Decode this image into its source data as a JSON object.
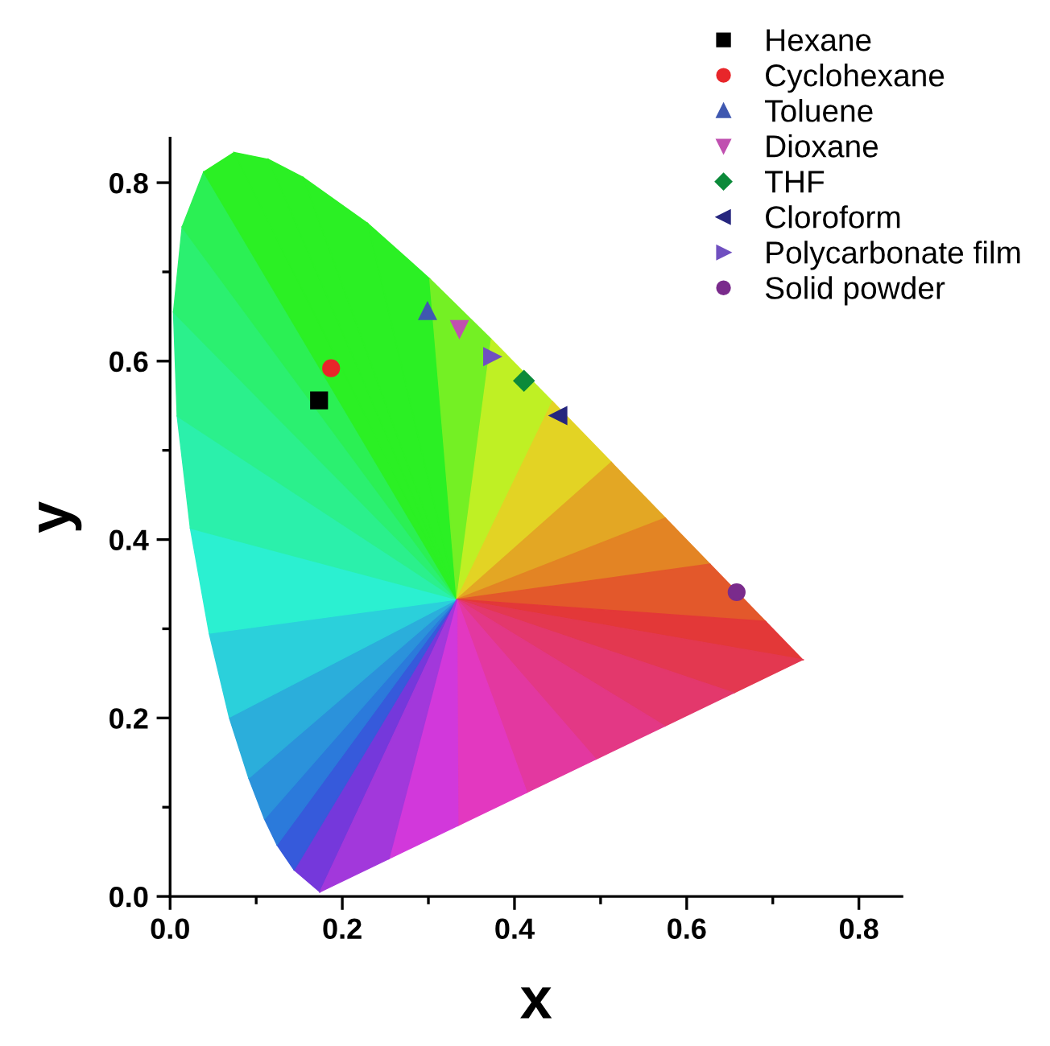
{
  "chart_data": {
    "type": "scatter",
    "xlabel": "x",
    "ylabel": "y",
    "xlim": [
      0,
      0.85
    ],
    "ylim": [
      0,
      0.85
    ],
    "xticks": [
      {
        "value": 0.0,
        "label": "0.0"
      },
      {
        "value": 0.1,
        "label": null
      },
      {
        "value": 0.2,
        "label": "0.2"
      },
      {
        "value": 0.3,
        "label": null
      },
      {
        "value": 0.4,
        "label": "0.4"
      },
      {
        "value": 0.5,
        "label": null
      },
      {
        "value": 0.6,
        "label": "0.6"
      },
      {
        "value": 0.7,
        "label": null
      },
      {
        "value": 0.8,
        "label": "0.8"
      }
    ],
    "yticks": [
      {
        "value": 0.0,
        "label": "0.0"
      },
      {
        "value": 0.1,
        "label": null
      },
      {
        "value": 0.2,
        "label": "0.2"
      },
      {
        "value": 0.3,
        "label": null
      },
      {
        "value": 0.4,
        "label": "0.4"
      },
      {
        "value": 0.5,
        "label": null
      },
      {
        "value": 0.6,
        "label": "0.6"
      },
      {
        "value": 0.7,
        "label": null
      },
      {
        "value": 0.8,
        "label": "0.8"
      }
    ],
    "grid": false,
    "legend": "top right",
    "series": [
      {
        "name": "Hexane",
        "color": "#000000",
        "marker": "square",
        "x": [
          0.173
        ],
        "values": [
          0.556
        ]
      },
      {
        "name": "Cyclohexane",
        "color": "#e8262a",
        "marker": "circle",
        "x": [
          0.187
        ],
        "values": [
          0.592
        ]
      },
      {
        "name": "Toluene",
        "color": "#3f58b0",
        "marker": "triangle",
        "x": [
          0.299
        ],
        "values": [
          0.656
        ]
      },
      {
        "name": "Dioxane",
        "color": "#c050b0",
        "marker": "triangle_down",
        "x": [
          0.336
        ],
        "values": [
          0.636
        ]
      },
      {
        "name": "THF",
        "color": "#0c8a3a",
        "marker": "diamond",
        "x": [
          0.411
        ],
        "values": [
          0.578
        ]
      },
      {
        "name": "Cloroform",
        "color": "#26267e",
        "marker": "triangle_left",
        "x": [
          0.451
        ],
        "values": [
          0.539
        ]
      },
      {
        "name": "Polycarbonate film",
        "color": "#7050c0",
        "marker": "triangle_right",
        "x": [
          0.374
        ],
        "values": [
          0.605
        ]
      },
      {
        "name": "Solid powder",
        "color": "#7a2b8c",
        "marker": "circle",
        "x": [
          0.658
        ],
        "values": [
          0.341
        ]
      }
    ]
  }
}
